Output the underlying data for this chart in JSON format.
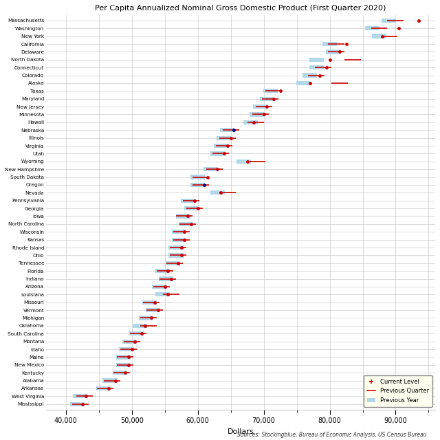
{
  "title": "Per Capita Annualized Nominal Gross Domestic Product (First Quarter 2020)",
  "xlabel": "Dollars",
  "source": "Sources: Stockingblue, Bureau of Economic Analysis, US Census Bureau",
  "states": [
    "Massachusetts",
    "Washington",
    "New York",
    "California",
    "Delaware",
    "North Dakota",
    "Connecticut",
    "Colorado",
    "Alaska",
    "Texas",
    "Maryland",
    "New Jersey",
    "Minnesota",
    "Hawaii",
    "Nebraska",
    "Illinois",
    "Virginia",
    "Utah",
    "Wyoming",
    "New Hampshire",
    "South Dakota",
    "Oregon",
    "Nevada",
    "Pennsylvania",
    "Georgia",
    "Iowa",
    "North Carolina",
    "Wisconsin",
    "Kansas",
    "Rhode Island",
    "Ohio",
    "Tennessee",
    "Florida",
    "Indiana",
    "Arizona",
    "Louisiana",
    "Missouri",
    "Vermont",
    "Michigan",
    "Oklahoma",
    "South Carolina",
    "Montana",
    "Idaho",
    "Maine",
    "New Mexico",
    "Kentucky",
    "Alabama",
    "Arkansas",
    "West Virginia",
    "Mississippi"
  ],
  "current": [
    93500,
    90500,
    88000,
    82500,
    81500,
    80000,
    79500,
    78500,
    77000,
    72500,
    71500,
    70500,
    70000,
    68500,
    65500,
    65000,
    64500,
    64000,
    67500,
    63000,
    61500,
    61000,
    63500,
    59500,
    60000,
    58500,
    59000,
    58000,
    58000,
    57500,
    57500,
    57000,
    55500,
    56000,
    55000,
    55500,
    53500,
    54000,
    53000,
    52000,
    51500,
    50500,
    50000,
    49500,
    49500,
    49000,
    47500,
    46500,
    43000,
    42500
  ],
  "prev_quarter": [
    90000,
    87500,
    89000,
    81000,
    81000,
    83500,
    79000,
    78000,
    81500,
    71500,
    71000,
    70000,
    69500,
    68800,
    65000,
    64500,
    64000,
    63500,
    69000,
    62500,
    60500,
    60500,
    64500,
    59000,
    59500,
    58000,
    58500,
    57500,
    57500,
    57000,
    57000,
    56500,
    55000,
    55500,
    54500,
    56000,
    53000,
    53500,
    52500,
    52500,
    51000,
    50000,
    49500,
    49000,
    49000,
    48500,
    47000,
    46000,
    42800,
    42200
  ],
  "prev_year": [
    89000,
    86500,
    87500,
    80000,
    80500,
    78000,
    78000,
    77000,
    76000,
    71000,
    70500,
    69500,
    69000,
    68000,
    64500,
    64000,
    63500,
    63000,
    67000,
    62000,
    60000,
    60000,
    63000,
    58500,
    59000,
    57800,
    58200,
    57200,
    57200,
    56700,
    56700,
    56200,
    54700,
    55200,
    54200,
    54700,
    52700,
    53200,
    52200,
    51200,
    50700,
    49700,
    49200,
    48700,
    48700,
    48200,
    46700,
    45700,
    42200,
    41700
  ],
  "special_blue_dots": [
    14,
    21
  ],
  "bar_color": "#b0d8e8",
  "bar_color_special": "#f5b8b8",
  "dot_color": "#cc0000",
  "dot_color_blue": "#00008b",
  "line_color_normal": "#cc0000",
  "line_color_special": "#cc0000",
  "background": "#ffffff",
  "grid_color": "#cccccc",
  "legend_bg": "#fffff0"
}
